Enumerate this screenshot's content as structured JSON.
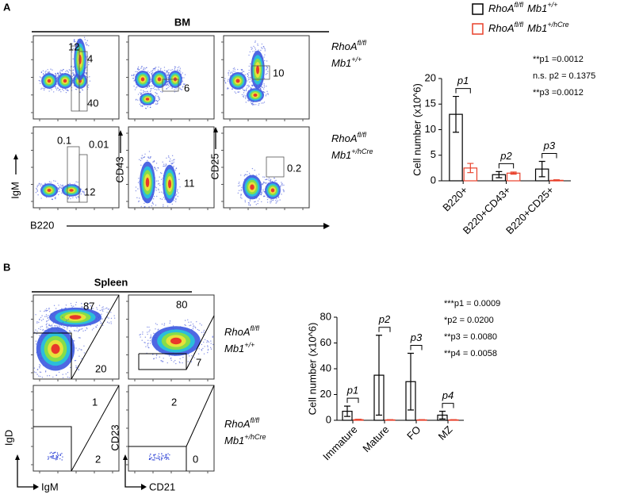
{
  "panel_labels": [
    "A",
    "B"
  ],
  "genotypes": [
    {
      "gene": "RhoA",
      "gene_sup": "fl/fl",
      "driver": "Mb1",
      "driver_sup": "+/+"
    },
    {
      "gene": "RhoA",
      "gene_sup": "fl/fl",
      "driver": "Mb1",
      "driver_sup": "+/hCre"
    }
  ],
  "bm": {
    "title": "BM",
    "x_axis": "B220",
    "y_axes": [
      "IgM",
      "CD43",
      "CD25"
    ],
    "gates": [
      [
        "12",
        "4",
        "40"
      ],
      [
        "6"
      ],
      [
        "10"
      ],
      [
        "0.1",
        "0.01",
        "12"
      ],
      [
        "11"
      ],
      [
        "0.2"
      ]
    ]
  },
  "spleen": {
    "title": "Spleen",
    "x_axes": [
      "IgM",
      "CD21"
    ],
    "y_axes": [
      "IgD",
      "CD23"
    ],
    "gates": [
      [
        "87",
        "20"
      ],
      [
        "80",
        "7"
      ],
      [
        "1",
        "2"
      ],
      [
        "2",
        "0"
      ]
    ]
  },
  "chart_data": [
    {
      "type": "bar",
      "y_label": "Cell number (x10^6)",
      "categories": [
        "B220+",
        "B220+CD43+",
        "B220+CD25+"
      ],
      "ylim": [
        0,
        20
      ],
      "yticks": [
        0,
        5,
        10,
        15,
        20
      ],
      "series": [
        {
          "color": "#000000",
          "values": [
            13,
            1.2,
            2.3
          ],
          "errors": [
            3.5,
            0.6,
            1.5
          ]
        },
        {
          "color": "#e8402a",
          "values": [
            2.5,
            1.5,
            0.1
          ],
          "errors": [
            0.9,
            0.2,
            0.1
          ]
        }
      ],
      "annotations": [
        "p1",
        "p2",
        "p3"
      ],
      "stats": [
        "**p1 =0.0012",
        "n.s. p2 = 0.1375",
        "**p3 =0.0012"
      ]
    },
    {
      "type": "bar",
      "y_label": "Cell number (x10^6)",
      "categories": [
        "Immature",
        "Mature",
        "FO",
        "MZ"
      ],
      "ylim": [
        0,
        80
      ],
      "yticks": [
        0,
        20,
        40,
        60,
        80
      ],
      "series": [
        {
          "color": "#000000",
          "values": [
            7,
            35,
            30,
            4
          ],
          "errors": [
            4,
            31,
            22,
            3
          ]
        },
        {
          "color": "#e8402a",
          "values": [
            0.5,
            0.3,
            0.3,
            0.3
          ],
          "errors": [
            0.3,
            0.2,
            0.2,
            0.2
          ]
        }
      ],
      "annotations": [
        "p1",
        "p2",
        "p3",
        "p4"
      ],
      "stats": [
        "***p1 = 0.0009",
        "*p2 = 0.0200",
        "**p3 = 0.0080",
        "**p4 = 0.0058"
      ]
    }
  ]
}
